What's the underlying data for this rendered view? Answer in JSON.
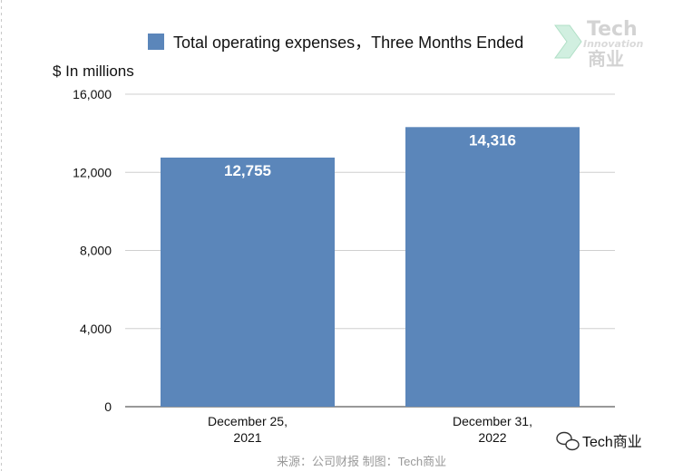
{
  "chart_data": {
    "type": "bar",
    "legend": "Total operating expenses，Three Months Ended",
    "ylabel": "$ In millions",
    "categories": [
      [
        "December 25,",
        "2021"
      ],
      [
        "December 31,",
        "2022"
      ]
    ],
    "series": [
      {
        "name": "Total operating expenses，Three Months Ended",
        "values": [
          12755,
          14316
        ],
        "labels": [
          "12,755",
          "14,316"
        ]
      }
    ],
    "ylim": [
      0,
      16000
    ],
    "yticks": [
      {
        "value": 0,
        "label": "0"
      },
      {
        "value": 4000,
        "label": "4,000"
      },
      {
        "value": 8000,
        "label": "8,000"
      },
      {
        "value": 12000,
        "label": "12,000"
      },
      {
        "value": 16000,
        "label": "16,000"
      }
    ],
    "grid": true,
    "legend_position": "top",
    "bar_color": "#5b86ba"
  },
  "source": "来源：公司财报 制图：Tech商业",
  "watermark": {
    "brand": "Tech",
    "tagline": "Innovation",
    "cn": "商业"
  },
  "wechat": {
    "account": "Tech商业"
  }
}
